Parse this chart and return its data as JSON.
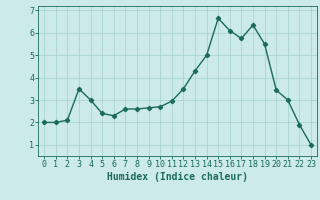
{
  "x": [
    0,
    1,
    2,
    3,
    4,
    5,
    6,
    7,
    8,
    9,
    10,
    11,
    12,
    13,
    14,
    15,
    16,
    17,
    18,
    19,
    20,
    21,
    22,
    23
  ],
  "y": [
    2.0,
    2.0,
    2.1,
    3.5,
    3.0,
    2.4,
    2.3,
    2.6,
    2.6,
    2.65,
    2.7,
    2.95,
    3.5,
    4.3,
    5.0,
    6.65,
    6.1,
    5.75,
    6.35,
    5.5,
    3.45,
    3.0,
    1.9,
    1.0
  ],
  "line_color": "#1a6b5a",
  "marker": "D",
  "marker_size": 2.2,
  "bg_color": "#cceae7",
  "grid_color": "#aad4d0",
  "axis_color": "#1a6b5a",
  "xlabel": "Humidex (Indice chaleur)",
  "xlabel_fontsize": 7,
  "tick_fontsize": 6,
  "ylim": [
    0.5,
    7.2
  ],
  "xlim": [
    -0.5,
    23.5
  ],
  "yticks": [
    1,
    2,
    3,
    4,
    5,
    6,
    7
  ],
  "xticks": [
    0,
    1,
    2,
    3,
    4,
    5,
    6,
    7,
    8,
    9,
    10,
    11,
    12,
    13,
    14,
    15,
    16,
    17,
    18,
    19,
    20,
    21,
    22,
    23
  ],
  "line_width": 1.0
}
